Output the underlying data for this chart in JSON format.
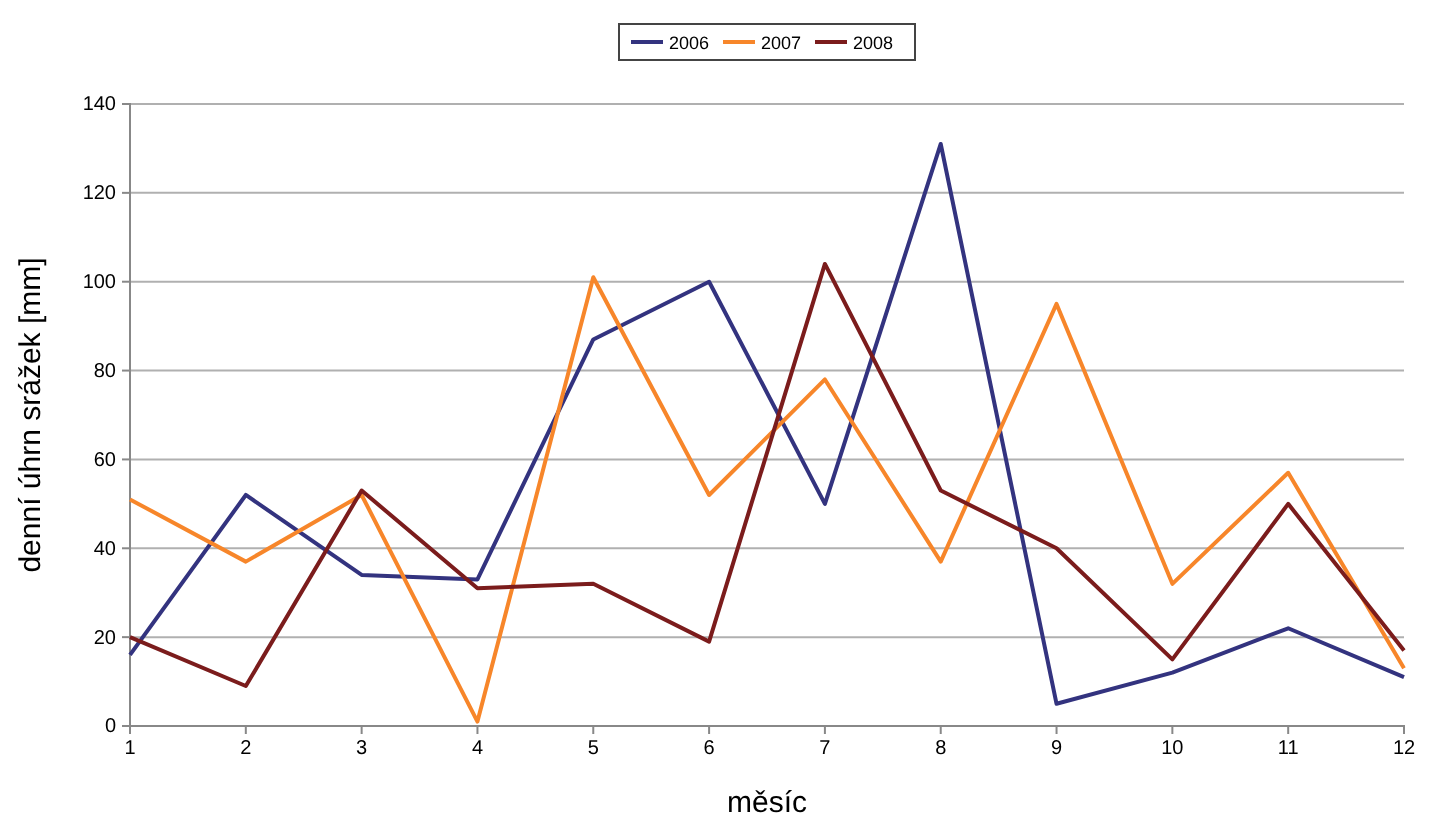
{
  "chart_data": {
    "type": "line",
    "xlabel": "měsíc",
    "ylabel": "denní úhrn srážek [mm]",
    "x": [
      1,
      2,
      3,
      4,
      5,
      6,
      7,
      8,
      9,
      10,
      11,
      12
    ],
    "xlim": [
      1,
      12
    ],
    "xticks": [
      1,
      2,
      3,
      4,
      5,
      6,
      7,
      8,
      9,
      10,
      11,
      12
    ],
    "ylim": [
      0,
      140
    ],
    "yticks": [
      0,
      20,
      40,
      60,
      80,
      100,
      120,
      140
    ],
    "grid": "y",
    "legend": "top",
    "marker": "none",
    "line_style": "solid",
    "series": [
      {
        "name": "2006",
        "color": "#33337f",
        "values": [
          16,
          52,
          34,
          33,
          87,
          100,
          50,
          131,
          5,
          12,
          22,
          11
        ]
      },
      {
        "name": "2007",
        "color": "#f7862a",
        "values": [
          51,
          37,
          52,
          1,
          101,
          52,
          78,
          37,
          95,
          32,
          57,
          13
        ]
      },
      {
        "name": "2008",
        "color": "#7b1c1c",
        "values": [
          20,
          9,
          53,
          31,
          32,
          19,
          104,
          53,
          40,
          15,
          50,
          17
        ]
      }
    ]
  }
}
